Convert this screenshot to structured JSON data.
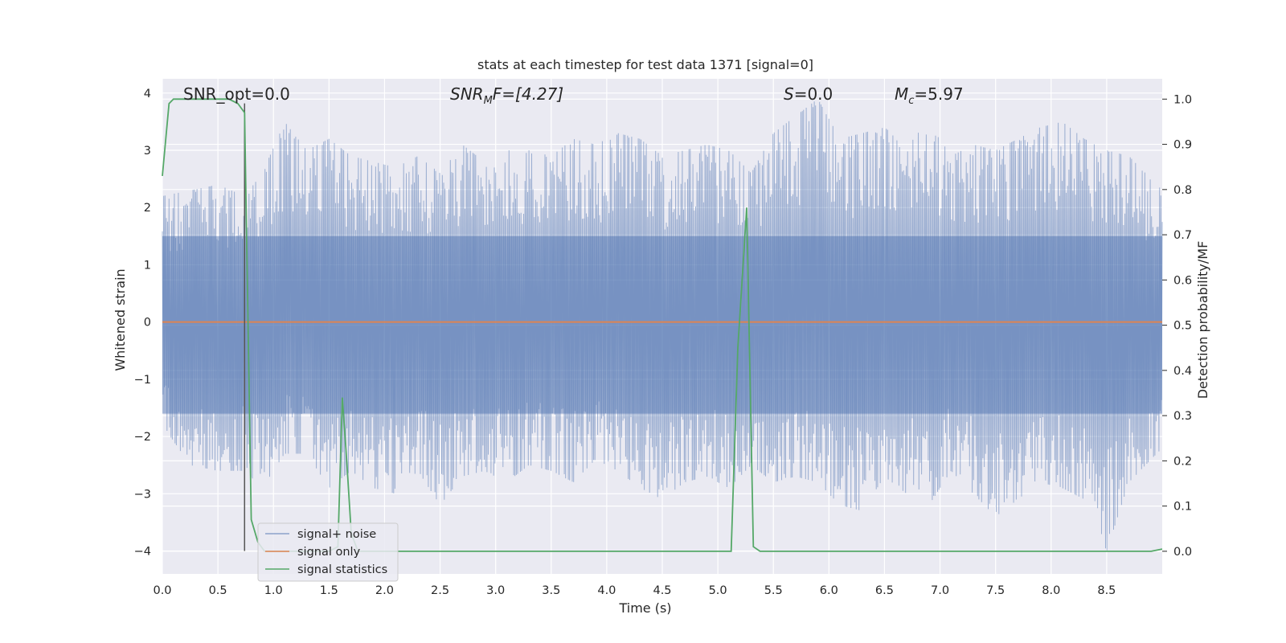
{
  "chart_data": {
    "type": "line",
    "title": "stats at each timestep for test data 1371 [signal=0]",
    "xlabel": "Time (s)",
    "ylabel": "Whitened strain",
    "y2label": "Detection probability/MF",
    "xlim": [
      0.0,
      9.0
    ],
    "ylim": [
      -4.4,
      4.25
    ],
    "y2lim": [
      -0.05,
      1.045
    ],
    "xticks": [
      "0.0",
      "0.5",
      "1.0",
      "1.5",
      "2.0",
      "2.5",
      "3.0",
      "3.5",
      "4.0",
      "4.5",
      "5.0",
      "5.5",
      "6.0",
      "6.5",
      "7.0",
      "7.5",
      "8.0",
      "8.5"
    ],
    "yticks": [
      "4",
      "3",
      "2",
      "1",
      "0",
      "−1",
      "−2",
      "−3",
      "−4"
    ],
    "y2ticks": [
      "1.0",
      "0.9",
      "0.8",
      "0.7",
      "0.6",
      "0.5",
      "0.4",
      "0.3",
      "0.2",
      "0.1",
      "0.0"
    ],
    "grid": true,
    "legend_position": "lower-left",
    "annotations": {
      "snr_opt": "SNR_opt=0.0",
      "snr_mf_main": "SNR",
      "snr_mf_sub": "M",
      "snr_mf_tail": "F=[4.27]",
      "s_main": "S",
      "s_tail": "=0.0",
      "mc_main": "M",
      "mc_sub": "c",
      "mc_tail": "=5.97"
    },
    "vline": {
      "x": 0.74,
      "ymin": -4.0,
      "ymax": 3.82,
      "color": "#555555"
    },
    "series": [
      {
        "name": "signal+ noise",
        "color": "#4c72b0",
        "axis": "left",
        "envelope": {
          "x": [
            0.0,
            0.25,
            0.5,
            0.74,
            0.9,
            1.1,
            1.3,
            1.5,
            1.7,
            1.9,
            2.1,
            2.3,
            2.5,
            2.7,
            2.9,
            3.1,
            3.3,
            3.5,
            3.7,
            3.9,
            4.1,
            4.3,
            4.5,
            4.7,
            4.9,
            5.1,
            5.3,
            5.5,
            5.7,
            5.9,
            6.1,
            6.3,
            6.5,
            6.7,
            6.9,
            7.1,
            7.3,
            7.5,
            7.7,
            7.9,
            8.1,
            8.3,
            8.5,
            8.7,
            9.0
          ],
          "upper": [
            2.2,
            2.3,
            2.4,
            2.2,
            2.6,
            3.5,
            3.0,
            3.2,
            2.9,
            2.8,
            2.7,
            2.9,
            2.6,
            3.1,
            2.8,
            3.0,
            3.0,
            2.9,
            3.2,
            3.1,
            3.3,
            3.2,
            2.9,
            3.0,
            3.1,
            3.0,
            2.6,
            3.3,
            3.6,
            3.9,
            3.2,
            3.3,
            3.4,
            3.1,
            3.5,
            2.9,
            3.1,
            3.0,
            3.2,
            3.4,
            3.5,
            3.2,
            3.0,
            2.9,
            2.3
          ],
          "lower": [
            -1.8,
            -2.5,
            -2.6,
            -2.6,
            -2.9,
            -2.3,
            -2.3,
            -2.9,
            -2.6,
            -2.9,
            -3.0,
            -2.6,
            -3.2,
            -2.7,
            -2.6,
            -2.8,
            -2.5,
            -2.6,
            -2.8,
            -2.4,
            -2.6,
            -2.9,
            -3.1,
            -2.8,
            -2.7,
            -2.9,
            -2.5,
            -2.8,
            -2.7,
            -2.8,
            -3.2,
            -3.3,
            -2.7,
            -3.0,
            -3.2,
            -2.6,
            -3.0,
            -3.4,
            -3.1,
            -2.8,
            -2.9,
            -3.1,
            -4.0,
            -2.8,
            -2.2
          ]
        }
      },
      {
        "name": "signal only",
        "color": "#dd8452",
        "axis": "left",
        "x": [
          0.0,
          9.0
        ],
        "y": [
          0.0,
          0.0
        ]
      },
      {
        "name": "signal statistics",
        "color": "#55a868",
        "axis": "right",
        "x": [
          0.0,
          0.06,
          0.1,
          0.2,
          0.3,
          0.4,
          0.5,
          0.6,
          0.68,
          0.74,
          0.8,
          0.86,
          0.92,
          1.0,
          1.5,
          1.58,
          1.62,
          1.66,
          1.7,
          1.76,
          1.82,
          2.0,
          2.5,
          3.0,
          3.5,
          4.0,
          4.5,
          5.0,
          5.12,
          5.18,
          5.26,
          5.32,
          5.38,
          5.5,
          6.0,
          7.0,
          8.0,
          8.9,
          9.0
        ],
        "y": [
          0.83,
          0.99,
          1.0,
          1.0,
          1.0,
          1.0,
          1.0,
          1.0,
          0.99,
          0.97,
          0.07,
          0.02,
          0.0,
          0.0,
          0.0,
          0.01,
          0.34,
          0.2,
          0.04,
          0.0,
          0.0,
          0.0,
          0.0,
          0.0,
          0.0,
          0.0,
          0.0,
          0.0,
          0.0,
          0.45,
          0.76,
          0.01,
          0.0,
          0.0,
          0.0,
          0.0,
          0.0,
          0.0,
          0.005
        ]
      }
    ]
  }
}
